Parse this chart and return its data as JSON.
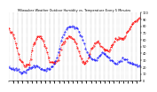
{
  "title": "Milwaukee Weather Outdoor Humidity vs. Temperature Every 5 Minutes",
  "bg_color": "#ffffff",
  "grid_color": "#aaaaaa",
  "line1_color": "#ff0000",
  "line2_color": "#0000ff",
  "ylim": [
    0,
    100
  ],
  "xlim": [
    0,
    287
  ],
  "yticks": [
    0,
    10,
    20,
    30,
    40,
    50,
    60,
    70,
    80,
    90,
    100
  ],
  "num_points": 288
}
